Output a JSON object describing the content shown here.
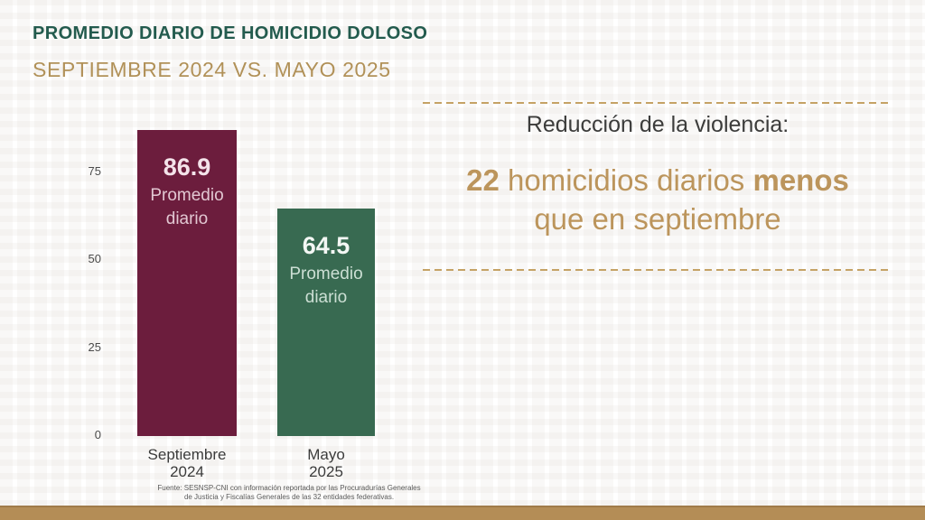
{
  "header": {
    "title": "PROMEDIO DIARIO DE HOMICIDIO DOLOSO",
    "subtitle": "SEPTIEMBRE 2024 VS. MAYO 2025"
  },
  "chart_data": {
    "type": "bar",
    "title": "Promedio diario de homicidio doloso — Septiembre 2024 vs. Mayo 2025",
    "categories": [
      "Septiembre 2024",
      "Mayo 2025"
    ],
    "category_lines": [
      [
        "Septiembre",
        "2024"
      ],
      [
        "Mayo",
        "2025"
      ]
    ],
    "values": [
      86.9,
      64.5
    ],
    "bar_sublabel": "Promedio diario",
    "bar_colors": [
      "#6C1D3D",
      "#386A51"
    ],
    "yticks": [
      0,
      25,
      50,
      75
    ],
    "ylim": [
      0,
      93
    ],
    "xlabel": "",
    "ylabel": "",
    "grid": false,
    "legend": false
  },
  "callout": {
    "heading": "Reducción de la violencia:",
    "number": "22",
    "mid_text": " homicidios diarios ",
    "bold_word": "menos",
    "line2": "que en septiembre",
    "accent_color": "#BC955C"
  },
  "source": {
    "line1": "Fuente: SESNSP-CNI con información reportada por las Procuradurías Generales",
    "line2": "de Justicia y Fiscalías Generales de las 32 entidades federativas."
  },
  "theme": {
    "title_green": "#235B4E",
    "gold": "#B19158",
    "maroon": "#6C1D3D",
    "green": "#386A51",
    "footer_bar": "#B48D56",
    "dash_color": "#C5A265"
  }
}
